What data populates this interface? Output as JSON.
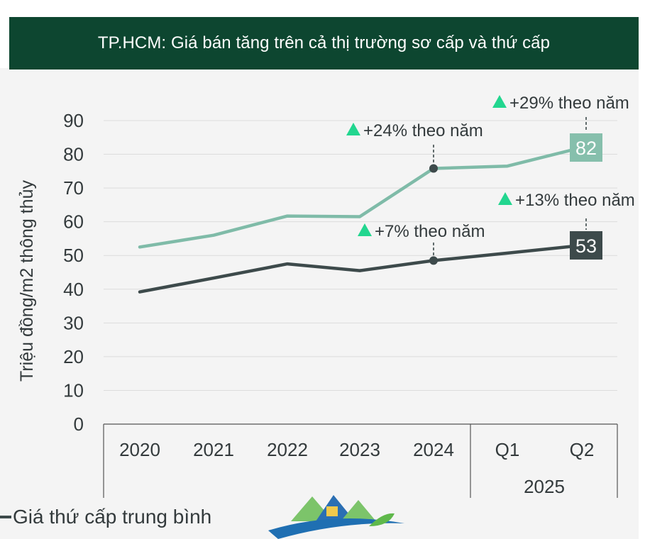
{
  "header": {
    "title": "TP.HCM: Giá bán tăng trên cả thị trường sơ cấp và thứ cấp"
  },
  "chart_data": {
    "type": "line",
    "title": "TP.HCM: Giá bán tăng trên cả thị trường sơ cấp và thứ cấp",
    "ylabel": "Triệu đồng/m2 thông thủy",
    "xlabel": "",
    "ylim": [
      0,
      90
    ],
    "yticks": [
      "0",
      "10",
      "20",
      "30",
      "40",
      "50",
      "60",
      "70",
      "80",
      "90"
    ],
    "categories": [
      "2020",
      "2021",
      "2022",
      "2023",
      "2024",
      "Q1",
      "Q2"
    ],
    "group_label": "2025",
    "grid": true,
    "series": [
      {
        "key": "primary",
        "color": "#7fbba8",
        "values": [
          52.5,
          56,
          61.7,
          61.5,
          75.8,
          76.5,
          82
        ]
      },
      {
        "name": "Giá thứ cấp trung bình",
        "key": "secondary",
        "color": "#3d4a4b",
        "values": [
          39.2,
          43.3,
          47.5,
          45.5,
          48.5,
          50.7,
          53
        ]
      }
    ],
    "end_labels": {
      "primary": "82",
      "secondary": "53"
    },
    "annotations": [
      {
        "text": "+24% theo năm",
        "series": "primary",
        "index": 4
      },
      {
        "text": "+29% theo năm",
        "series": "primary",
        "index": 6
      },
      {
        "text": "+7% theo năm",
        "series": "secondary",
        "index": 4
      },
      {
        "text": "+13% theo năm",
        "series": "secondary",
        "index": 6
      }
    ],
    "colors": {
      "up_arrow": "#22d68f",
      "axis": "#555555",
      "grid": "#dcdcdc",
      "text": "#333a3c"
    }
  },
  "legend": {
    "label": "Giá thứ cấp trung bình"
  }
}
